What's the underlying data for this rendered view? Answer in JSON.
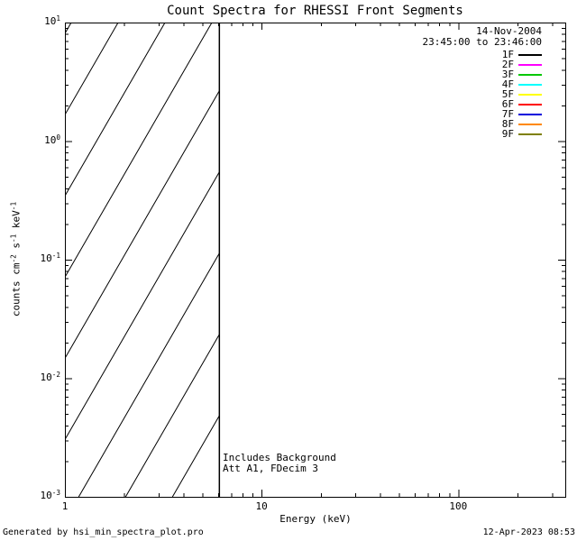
{
  "title": "Count Spectra for RHESSI Front Segments",
  "header": {
    "date": "14-Nov-2004",
    "time_range": "23:45:00 to 23:46:00"
  },
  "footer": {
    "left": "Generated by hsi_min_spectra_plot.pro",
    "right": "12-Apr-2023 08:53"
  },
  "chart_data": {
    "type": "line",
    "title": "Count Spectra for RHESSI Front Segments",
    "xlabel": "Energy (keV)",
    "ylabel": "counts cm^-2 s^-1 keV^-1",
    "ylabel_parts": [
      [
        "span",
        "counts cm"
      ],
      [
        "sup",
        "-2"
      ],
      [
        "span",
        " s"
      ],
      [
        "sup",
        "-1"
      ],
      [
        "span",
        " keV"
      ],
      [
        "sup",
        "-1"
      ]
    ],
    "xscale": "log",
    "yscale": "log",
    "xlim": [
      1,
      350
    ],
    "ylim": [
      0.001,
      10
    ],
    "grid": false,
    "legend_position": "top-right",
    "x_ticks": {
      "values": [
        1,
        10,
        100
      ],
      "labels": [
        "1",
        "10",
        "100"
      ]
    },
    "y_ticks": {
      "values": [
        0.001,
        0.01,
        0.1,
        1,
        10
      ],
      "labels": [
        {
          "base": "10",
          "exp": "-3"
        },
        {
          "base": "10",
          "exp": "-2"
        },
        {
          "base": "10",
          "exp": "-1"
        },
        {
          "base": "10",
          "exp": "0"
        },
        {
          "base": "10",
          "exp": "1"
        }
      ]
    },
    "hatched_region": {
      "x_min": 1,
      "x_max": 6.1,
      "style": "diagonal-lines"
    },
    "boundary_line_x": 6.1,
    "series": [
      {
        "name": "1F",
        "color": "#000000",
        "values": []
      },
      {
        "name": "2F",
        "color": "#ff00ff",
        "values": []
      },
      {
        "name": "3F",
        "color": "#00c800",
        "values": []
      },
      {
        "name": "4F",
        "color": "#00ffff",
        "values": []
      },
      {
        "name": "5F",
        "color": "#ffff00",
        "values": []
      },
      {
        "name": "6F",
        "color": "#ff0000",
        "values": []
      },
      {
        "name": "7F",
        "color": "#0000dd",
        "values": []
      },
      {
        "name": "8F",
        "color": "#ff8800",
        "values": []
      },
      {
        "name": "9F",
        "color": "#7f8000",
        "values": []
      }
    ],
    "annotations": [
      {
        "text": "Includes Background",
        "x": 6.3,
        "y": 0.002
      },
      {
        "text": "Att A1, FDecim 3",
        "x": 6.3,
        "y": 0.0017
      }
    ]
  }
}
